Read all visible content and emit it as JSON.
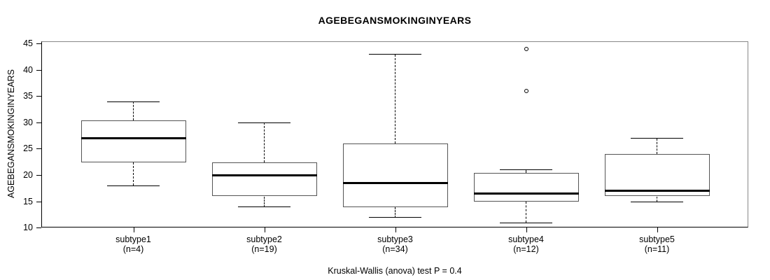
{
  "chart_data": {
    "type": "boxplot",
    "title": "AGEBEGANSMOKINGINYEARS",
    "ylabel": "AGEBEGANSMOKINGINYEARS",
    "xlabel": "",
    "footnote": "Kruskal-Wallis (anova) test P = 0.4",
    "ylim": [
      10.1,
      45.5
    ],
    "yticks": [
      10,
      15,
      20,
      25,
      30,
      35,
      40,
      45
    ],
    "grid": false,
    "legend": "none",
    "categories": [
      "subtype1",
      "subtype2",
      "subtype3",
      "subtype4",
      "subtype5"
    ],
    "category_sublabels": [
      "(n=4)",
      "(n=19)",
      "(n=34)",
      "(n=12)",
      "(n=11)"
    ],
    "series": [
      {
        "name": "subtype1",
        "n": 4,
        "whisker_low": 18,
        "q1": 22.5,
        "median": 27,
        "q3": 30.5,
        "whisker_high": 34,
        "outliers": []
      },
      {
        "name": "subtype2",
        "n": 19,
        "whisker_low": 14,
        "q1": 16,
        "median": 20,
        "q3": 22.5,
        "whisker_high": 30,
        "outliers": []
      },
      {
        "name": "subtype3",
        "n": 34,
        "whisker_low": 12,
        "q1": 14,
        "median": 18.5,
        "q3": 26,
        "whisker_high": 43,
        "outliers": []
      },
      {
        "name": "subtype4",
        "n": 12,
        "whisker_low": 11,
        "q1": 15,
        "median": 16.5,
        "q3": 20.5,
        "whisker_high": 21,
        "outliers": [
          36,
          44
        ]
      },
      {
        "name": "subtype5",
        "n": 11,
        "whisker_low": 15,
        "q1": 16,
        "median": 17,
        "q3": 24,
        "whisker_high": 27,
        "outliers": []
      }
    ],
    "colors": {
      "background": "#ffffff",
      "text": "#000000",
      "box_border": "#555555",
      "median": "#000000",
      "whisker": "#000000",
      "frame_dark": "#000000",
      "frame_light": "#888888"
    }
  }
}
